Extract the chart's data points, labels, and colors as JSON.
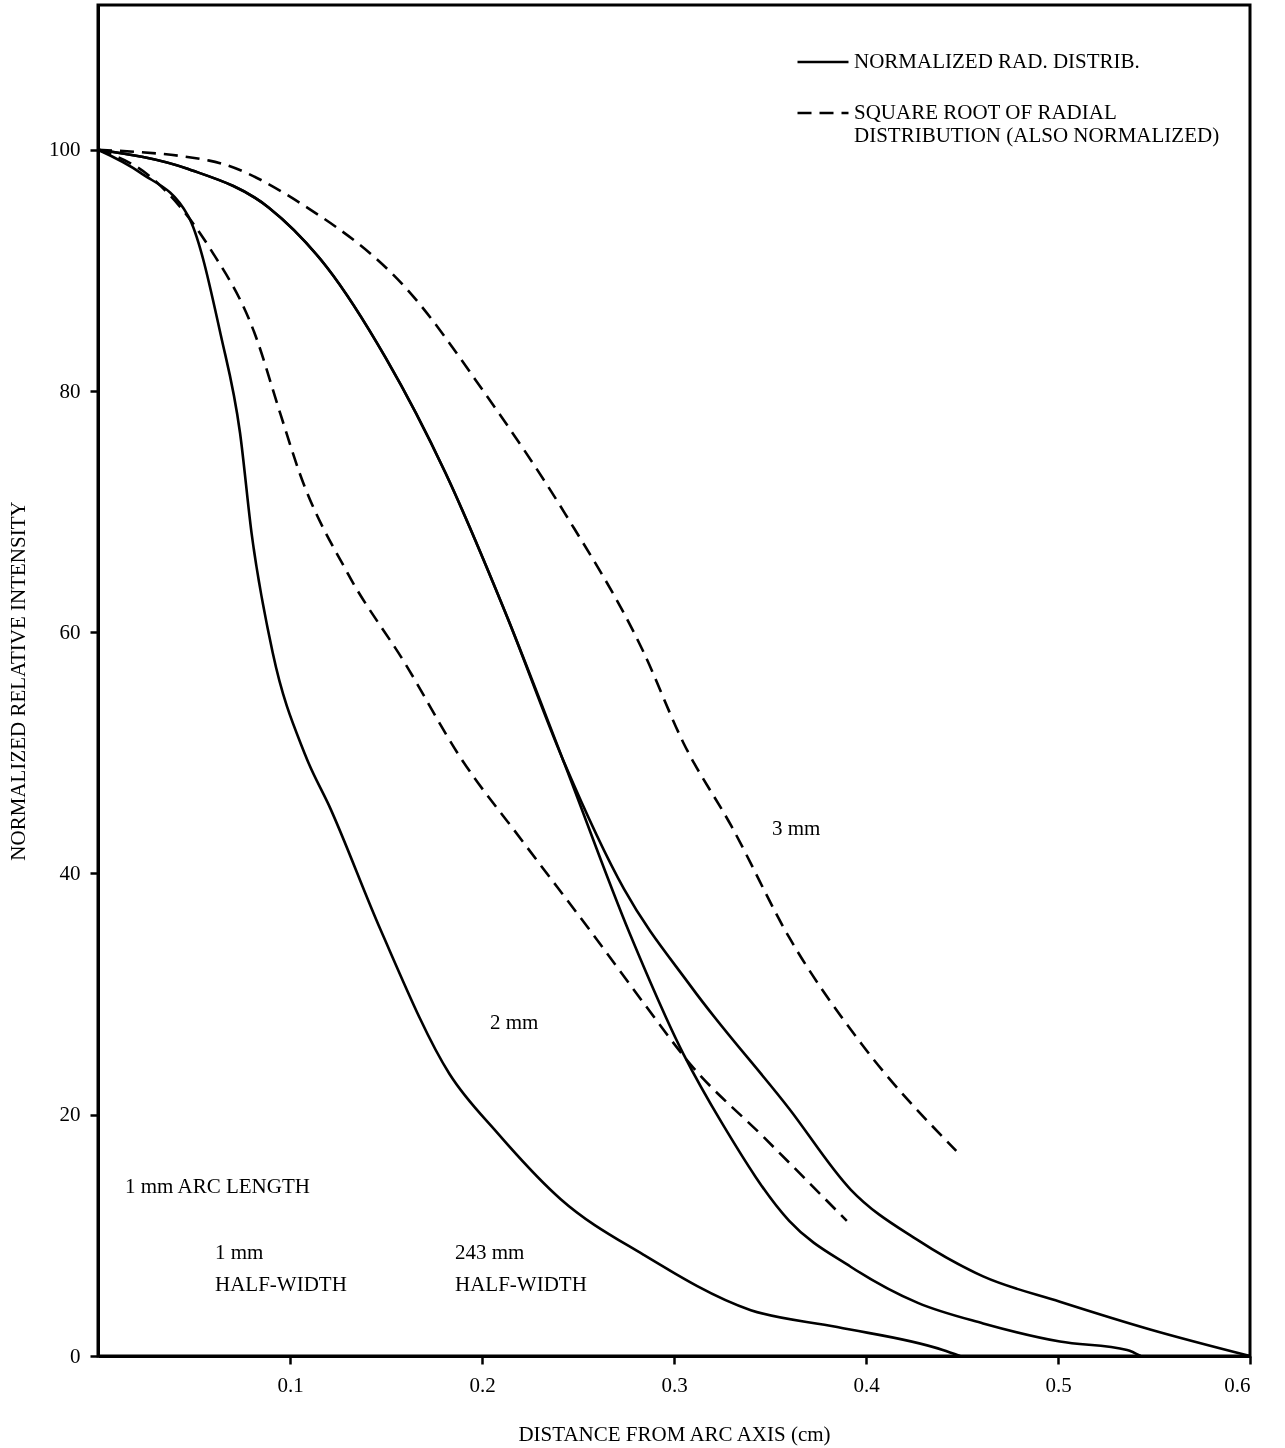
{
  "chart_data": {
    "type": "line",
    "xlabel": "DISTANCE FROM ARC AXIS (cm)",
    "ylabel": "NORMALIZED RELATIVE INTENSITY",
    "xlim": [
      0,
      0.6
    ],
    "xticks": [
      0.1,
      0.2,
      0.3,
      0.4,
      0.5,
      0.6
    ],
    "ylim": [
      0,
      112
    ],
    "yticks": [
      0,
      20,
      40,
      60,
      80,
      100
    ],
    "grid": false,
    "legend": "top right",
    "marker": "none",
    "series": [
      {
        "name": "NORMALIZED RAD. DISTRIB.",
        "color": "#000000",
        "line_style": "solid",
        "x": [
          0,
          0.022,
          0.047,
          0.064,
          0.074,
          0.08,
          0.091,
          0.108,
          0.121,
          0.147,
          0.183,
          0.208,
          0.241,
          0.284,
          0.34,
          0.385,
          0.44,
          0.449
        ],
        "values": [
          100,
          98.1,
          94.5,
          84.6,
          76.5,
          68.2,
          58.3,
          49.8,
          45.4,
          35.4,
          23.4,
          18.5,
          13,
          8.4,
          3.8,
          2.4,
          0.5,
          0
        ]
      },
      {
        "name": "SQUARE ROOT OF RADIAL\nDISTRIBUTION (ALSO NORMALIZED)",
        "color": "#000000",
        "line_style": "dashed",
        "x": [
          0,
          0.027,
          0.058,
          0.082,
          0.095,
          0.105,
          0.13,
          0.16,
          0.188,
          0.221,
          0.259,
          0.284,
          0.309,
          0.347,
          0.39
        ],
        "values": [
          100,
          97.8,
          91.9,
          84.6,
          78.1,
          73.2,
          64.9,
          57.4,
          49.8,
          42.7,
          34.7,
          29.3,
          24.1,
          18.1,
          11.2
        ]
      },
      {
        "color": "#000000",
        "line_style": "solid",
        "x": [
          0,
          0.047,
          0.089,
          0.119,
          0.15,
          0.181,
          0.212,
          0.242,
          0.277,
          0.305,
          0.325,
          0.36,
          0.392,
          0.427,
          0.461,
          0.501,
          0.536,
          0.543
        ],
        "values": [
          100,
          98.4,
          95.2,
          90.3,
          82.7,
          73.2,
          61.7,
          49.5,
          35,
          25,
          19.3,
          11.2,
          7.4,
          4.4,
          2.7,
          1.2,
          0.5,
          0
        ]
      },
      {
        "color": "#000000",
        "line_style": "solid",
        "x": [
          0,
          0.047,
          0.089,
          0.119,
          0.15,
          0.181,
          0.212,
          0.242,
          0.274,
          0.309,
          0.36,
          0.392,
          0.427,
          0.461,
          0.501,
          0.548,
          0.6
        ],
        "values": [
          100,
          98.4,
          95.2,
          90.3,
          82.7,
          73.2,
          61.7,
          49.5,
          38.7,
          30.6,
          20.5,
          13.8,
          9.6,
          6.6,
          4.5,
          2.2,
          0
        ]
      },
      {
        "color": "#000000",
        "line_style": "dashed",
        "x": [
          0,
          0.058,
          0.109,
          0.16,
          0.202,
          0.243,
          0.284,
          0.305,
          0.33,
          0.36,
          0.398,
          0.447
        ],
        "values": [
          100,
          99.1,
          95.2,
          88.6,
          79.7,
          69.9,
          58.4,
          50.8,
          43.9,
          34.7,
          25.8,
          17
        ]
      }
    ],
    "annotations": [
      "3 mm",
      "2 mm",
      "1 mm ARC LENGTH",
      "1 mm\nHALF-WIDTH",
      "243 mm\nHALF-WIDTH"
    ]
  }
}
